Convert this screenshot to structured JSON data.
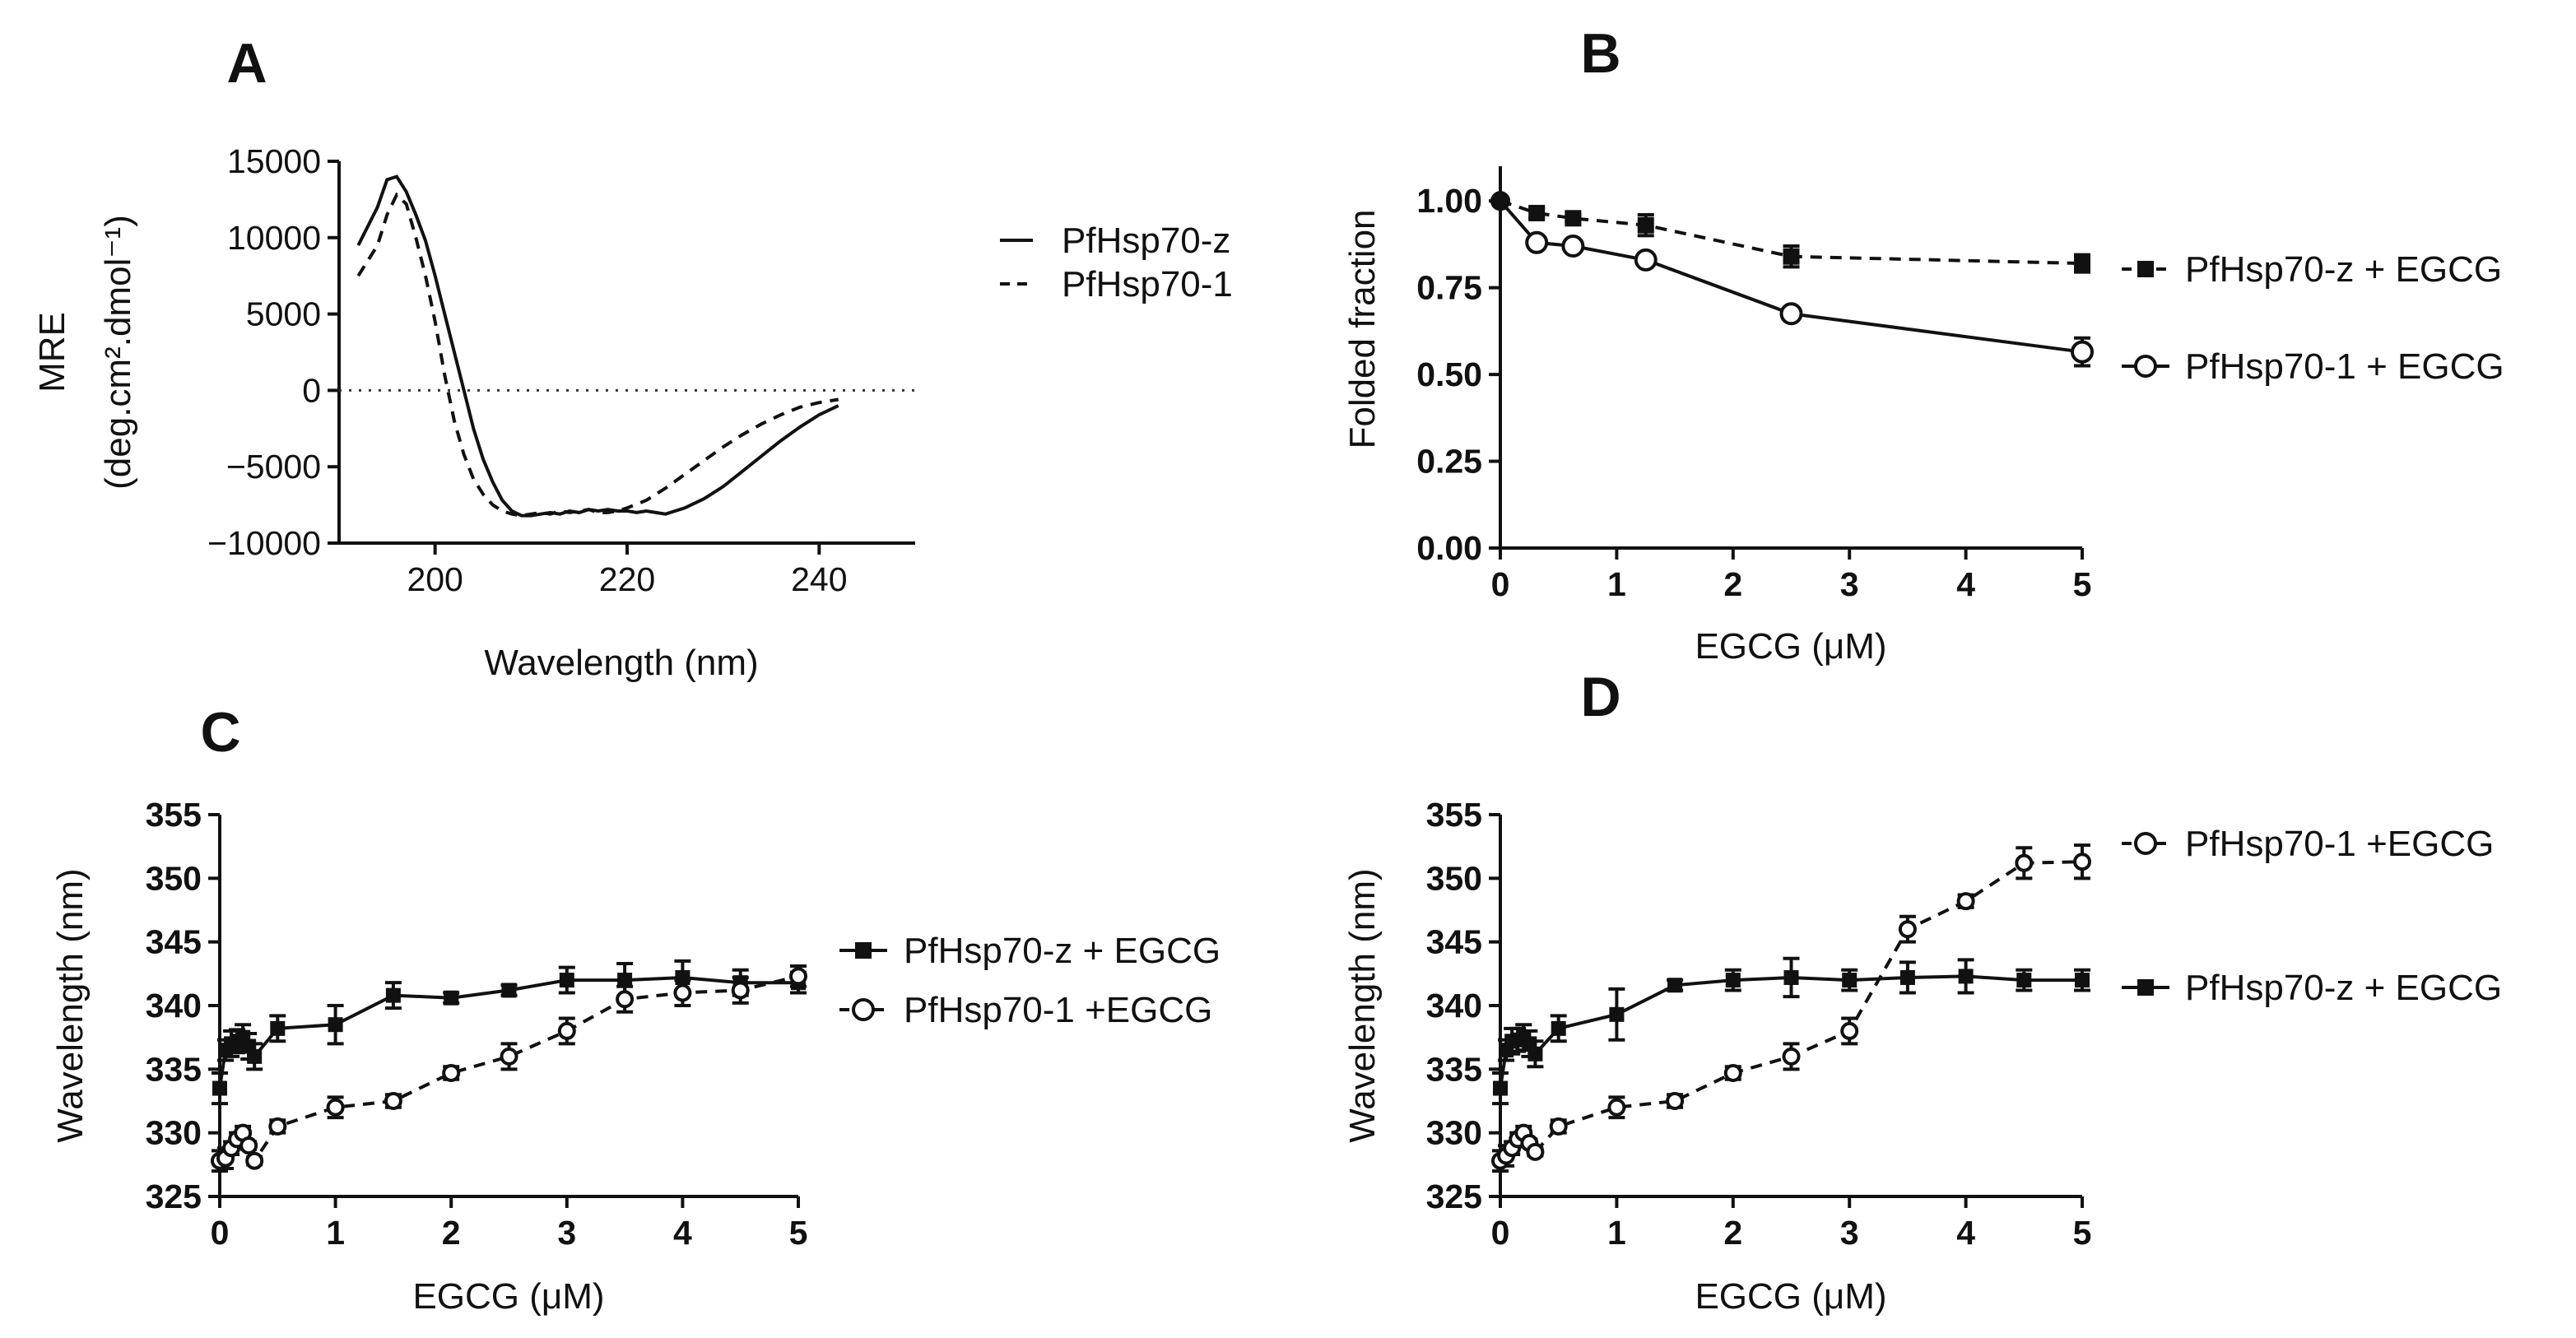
{
  "chart_data": [
    {
      "id": "A",
      "type": "line",
      "panel_label": "A",
      "xlabel": "Wavelength (nm)",
      "ylabel_line1": "MRE",
      "ylabel_line2": "(deg.cm².dmol⁻¹)",
      "xlim": [
        190,
        250
      ],
      "ylim": [
        -10000,
        15000
      ],
      "x_ticks": [
        200,
        220,
        240
      ],
      "y_ticks": [
        -10000,
        -5000,
        0,
        5000,
        10000,
        15000
      ],
      "x_tick_labels": [
        "200",
        "220",
        "240"
      ],
      "y_tick_labels": [
        "−10000",
        "−5000",
        "0",
        "5000",
        "10000",
        "15000"
      ],
      "reference_line": 0,
      "legend_position": "right",
      "series": [
        {
          "name": "PfHsp70-z",
          "style": "solid",
          "x": [
            192,
            194,
            195,
            196,
            197,
            198,
            199,
            200,
            201,
            202,
            203,
            204,
            205,
            206,
            207,
            208,
            209,
            210,
            211,
            212,
            213,
            214,
            215,
            216,
            217,
            218,
            219,
            220,
            221,
            222,
            223,
            224,
            225,
            226,
            227,
            228,
            230,
            232,
            234,
            236,
            238,
            240,
            242
          ],
          "y": [
            9500,
            12000,
            13800,
            14000,
            13000,
            11500,
            9800,
            7500,
            5000,
            2500,
            0,
            -2500,
            -4500,
            -6000,
            -7200,
            -7900,
            -8200,
            -8200,
            -8100,
            -8000,
            -8100,
            -7900,
            -8000,
            -7800,
            -7900,
            -7800,
            -7900,
            -7900,
            -8000,
            -7900,
            -8000,
            -8100,
            -7900,
            -7700,
            -7400,
            -7100,
            -6300,
            -5300,
            -4300,
            -3300,
            -2400,
            -1600,
            -1000
          ]
        },
        {
          "name": "PfHsp70-1",
          "style": "dashed",
          "x": [
            192,
            194,
            195,
            196,
            197,
            198,
            199,
            200,
            201,
            202,
            203,
            204,
            205,
            206,
            207,
            208,
            209,
            210,
            211,
            212,
            213,
            214,
            215,
            216,
            217,
            218,
            219,
            220,
            222,
            224,
            226,
            228,
            230,
            232,
            234,
            236,
            238,
            240,
            242
          ],
          "y": [
            7500,
            9500,
            11500,
            12800,
            12200,
            10000,
            7500,
            4500,
            1000,
            -2000,
            -4200,
            -5800,
            -6800,
            -7500,
            -7900,
            -8100,
            -8200,
            -8100,
            -8000,
            -8100,
            -7900,
            -8000,
            -7900,
            -7800,
            -8000,
            -8000,
            -7900,
            -7700,
            -7200,
            -6400,
            -5500,
            -4600,
            -3700,
            -2900,
            -2200,
            -1600,
            -1100,
            -800,
            -600
          ]
        }
      ]
    },
    {
      "id": "B",
      "type": "line",
      "panel_label": "B",
      "xlabel": "EGCG (μM)",
      "ylabel": "Folded fraction",
      "xlim": [
        0,
        5
      ],
      "ylim": [
        0,
        1.1
      ],
      "x_ticks": [
        0,
        1,
        2,
        3,
        4,
        5
      ],
      "y_ticks": [
        0,
        0.25,
        0.5,
        0.75,
        1
      ],
      "x_tick_labels": [
        "0",
        "1",
        "2",
        "3",
        "4",
        "5"
      ],
      "y_tick_labels": [
        "0.00",
        "0.25",
        "0.50",
        "0.75",
        "1.00"
      ],
      "legend_position": "right",
      "series": [
        {
          "name": "PfHsp70-z + EGCG",
          "style": "dashed",
          "marker": "filled-square",
          "x": [
            0,
            0.3125,
            0.625,
            1.25,
            2.5,
            5
          ],
          "y": [
            1.0,
            0.965,
            0.95,
            0.93,
            0.84,
            0.82
          ],
          "err": [
            0.0,
            0.015,
            0.01,
            0.03,
            0.03,
            0.025
          ]
        },
        {
          "name": "PfHsp70-1 + EGCG",
          "style": "solid",
          "marker": "open-circle",
          "x": [
            0,
            0.3125,
            0.625,
            1.25,
            2.5,
            5
          ],
          "y": [
            1.0,
            0.88,
            0.87,
            0.83,
            0.675,
            0.565
          ],
          "err": [
            0.0,
            0.005,
            0.005,
            0.005,
            0.005,
            0.04
          ]
        }
      ]
    },
    {
      "id": "C",
      "type": "line",
      "panel_label": "C",
      "xlabel": "EGCG (μM)",
      "ylabel": "Wavelength (nm)",
      "xlim": [
        0,
        5
      ],
      "ylim": [
        325,
        355
      ],
      "x_ticks": [
        0,
        1,
        2,
        3,
        4,
        5
      ],
      "y_ticks": [
        325,
        330,
        335,
        340,
        345,
        350,
        355
      ],
      "x_tick_labels": [
        "0",
        "1",
        "2",
        "3",
        "4",
        "5"
      ],
      "y_tick_labels": [
        "325",
        "330",
        "335",
        "340",
        "345",
        "350",
        "355"
      ],
      "legend_position": "right",
      "series": [
        {
          "name": "PfHsp70-z + EGCG",
          "style": "solid",
          "marker": "filled-square",
          "x": [
            0,
            0.05,
            0.1,
            0.15,
            0.2,
            0.25,
            0.3,
            0.5,
            1,
            1.5,
            2,
            2.5,
            3,
            3.5,
            4,
            4.5,
            5
          ],
          "y": [
            333.5,
            336.5,
            337,
            337.2,
            337.5,
            336.8,
            336,
            338.2,
            338.5,
            340.8,
            340.6,
            341.2,
            342,
            342,
            342.2,
            341.8,
            341.8
          ],
          "err": [
            1.2,
            0.8,
            1.0,
            0.9,
            1.0,
            1.0,
            1.0,
            1.0,
            1.5,
            1.0,
            0.4,
            0.4,
            1.0,
            1.3,
            1.3,
            1.0,
            0.8
          ]
        },
        {
          "name": "PfHsp70-1 +EGCG",
          "style": "dashed",
          "marker": "open-circle",
          "x": [
            0,
            0.05,
            0.1,
            0.15,
            0.2,
            0.25,
            0.3,
            0.5,
            1,
            1.5,
            2,
            2.5,
            3,
            3.5,
            4,
            4.5,
            5
          ],
          "y": [
            327.8,
            328,
            328.8,
            329.5,
            330,
            329,
            327.8,
            330.5,
            332,
            332.5,
            334.7,
            336,
            338,
            340.5,
            341,
            341.2,
            342.3
          ],
          "err": [
            0.8,
            0.8,
            0.5,
            0.5,
            0.5,
            0.3,
            0.3,
            0.5,
            0.8,
            0.5,
            0.5,
            1.0,
            1.0,
            1.0,
            1.0,
            1.0,
            0.8
          ]
        }
      ]
    },
    {
      "id": "D",
      "type": "line",
      "panel_label": "D",
      "xlabel": "EGCG (μM)",
      "ylabel": "Wavelength (nm)",
      "xlim": [
        0,
        5
      ],
      "ylim": [
        325,
        355
      ],
      "x_ticks": [
        0,
        1,
        2,
        3,
        4,
        5
      ],
      "y_ticks": [
        325,
        330,
        335,
        340,
        345,
        350,
        355
      ],
      "x_tick_labels": [
        "0",
        "1",
        "2",
        "3",
        "4",
        "5"
      ],
      "y_tick_labels": [
        "325",
        "330",
        "335",
        "340",
        "345",
        "350",
        "355"
      ],
      "legend_position": "right",
      "series": [
        {
          "name": "PfHsp70-1 +EGCG",
          "style": "dashed",
          "marker": "open-circle",
          "x": [
            0,
            0.05,
            0.1,
            0.15,
            0.2,
            0.25,
            0.3,
            0.5,
            1,
            1.5,
            2,
            2.5,
            3,
            3.5,
            4,
            4.5,
            5
          ],
          "y": [
            327.8,
            328.2,
            328.8,
            329.5,
            330,
            329.2,
            328.5,
            330.5,
            332,
            332.5,
            334.7,
            336,
            338,
            346,
            348.2,
            351.2,
            351.3
          ],
          "err": [
            0.8,
            0.8,
            0.5,
            0.5,
            0.5,
            0.3,
            0.3,
            0.5,
            0.8,
            0.5,
            0.5,
            1.0,
            1.0,
            1.0,
            0.5,
            1.2,
            1.3
          ]
        },
        {
          "name": "PfHsp70-z + EGCG",
          "style": "solid",
          "marker": "filled-square",
          "x": [
            0,
            0.05,
            0.1,
            0.15,
            0.2,
            0.25,
            0.3,
            0.5,
            1,
            1.5,
            2,
            2.5,
            3,
            3.5,
            4,
            4.5,
            5
          ],
          "y": [
            333.5,
            336.5,
            337.2,
            337.3,
            337.5,
            337,
            336.2,
            338.2,
            339.3,
            341.6,
            342,
            342.2,
            342,
            342.2,
            342.3,
            342,
            342
          ],
          "err": [
            1.2,
            0.8,
            1.0,
            0.9,
            1.0,
            1.0,
            1.0,
            1.0,
            2.0,
            0.4,
            0.8,
            1.5,
            0.8,
            1.2,
            1.3,
            0.8,
            0.8
          ]
        }
      ]
    }
  ]
}
